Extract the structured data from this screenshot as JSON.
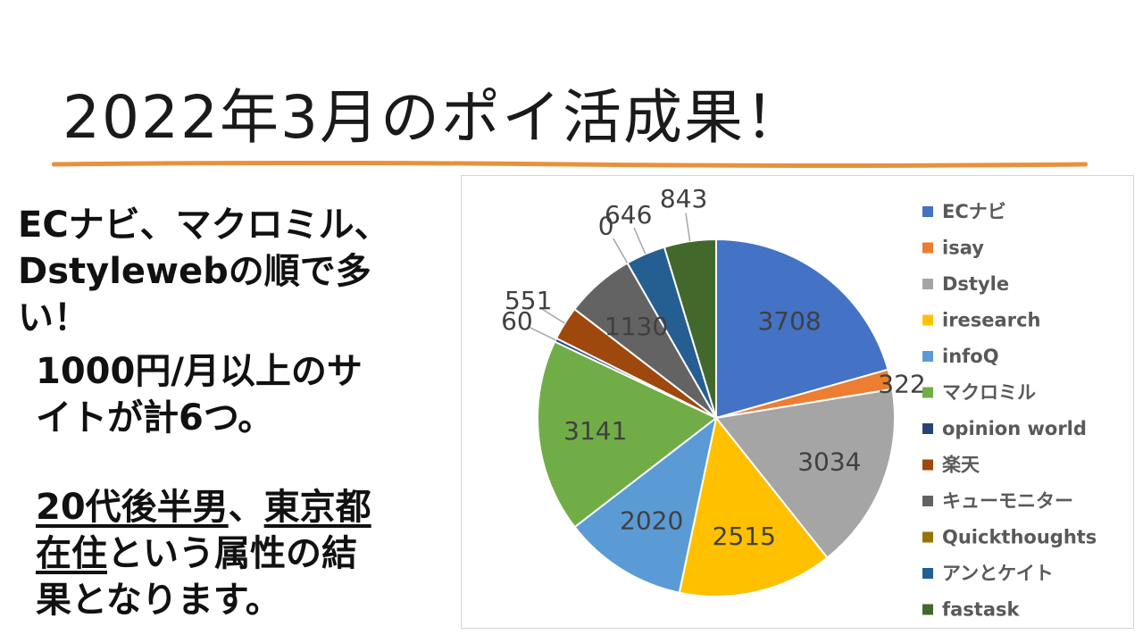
{
  "slide": {
    "title": "2022年3月のポイ活成果！",
    "accent_color": "#e8913a"
  },
  "text": {
    "line1": "ECナビ、マクロミル、",
    "line2": "Dstylewebの順で多",
    "line3": "い！",
    "line4": "1000円/月以上のサ",
    "line5": "イトが計6つ。",
    "line6_u1": "20代後半男",
    "line6_sep": "、",
    "line6_u2": "東京都",
    "line7_u": "在住",
    "line7_rest": "という属性の結",
    "line8": "果となります。"
  },
  "chart_data": {
    "type": "pie",
    "title": "",
    "legend_position": "right",
    "categories": [
      "ECナビ",
      "isay",
      "Dstyle",
      "iresearch",
      "infoQ",
      "マクロミル",
      "opinion world",
      "楽天",
      "キューモニター",
      "Quickthoughts",
      "アンとケイト",
      "fastask"
    ],
    "values": [
      3708,
      322,
      3034,
      2515,
      2020,
      3141,
      60,
      551,
      1130,
      0,
      646,
      843
    ],
    "labels": [
      "3708",
      "322",
      "3034",
      "2515",
      "2020",
      "3141",
      "60",
      "551",
      "1130",
      "0",
      "646",
      "843"
    ],
    "colors": [
      "#4472c4",
      "#ed7d31",
      "#a5a5a5",
      "#ffc000",
      "#5b9bd5",
      "#70ad47",
      "#264478",
      "#9e480e",
      "#636363",
      "#997300",
      "#255e91",
      "#43682b"
    ]
  }
}
